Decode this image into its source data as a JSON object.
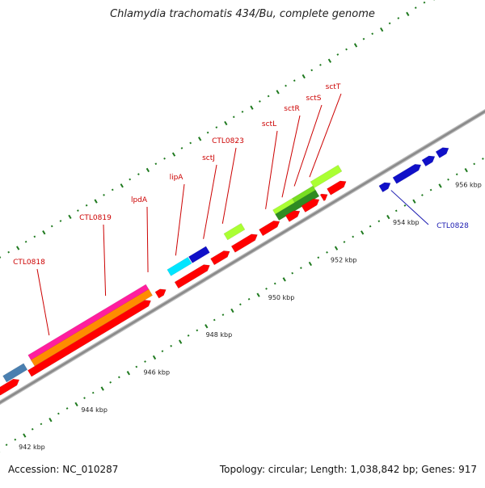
{
  "title": "Chlamydia trachomatis 434/Bu, complete genome",
  "footer": {
    "accession": "Accession: NC_010287",
    "summary": "Topology: circular; Length: 1,038,842 bp; Genes: 917"
  },
  "colors": {
    "backbone": "#8a8a8a",
    "tick": "#1f7a1f",
    "cds": "#ff0000",
    "label_red": "#cc0000",
    "label_blue": "#1a1ab0"
  },
  "ticks": [
    {
      "label": "942 kbp"
    },
    {
      "label": "944 kbp"
    },
    {
      "label": "946 kbp"
    },
    {
      "label": "948 kbp"
    },
    {
      "label": "950 kbp"
    },
    {
      "label": "952 kbp"
    },
    {
      "label": "954 kbp"
    },
    {
      "label": "956 kbp"
    }
  ],
  "gene_labels": [
    {
      "name": "CTL0818",
      "color": "#cc0000"
    },
    {
      "name": "CTL0819",
      "color": "#cc0000"
    },
    {
      "name": "lpdA",
      "color": "#cc0000"
    },
    {
      "name": "lipA",
      "color": "#cc0000"
    },
    {
      "name": "sctJ",
      "color": "#cc0000"
    },
    {
      "name": "CTL0823",
      "color": "#cc0000"
    },
    {
      "name": "sctL",
      "color": "#cc0000"
    },
    {
      "name": "sctR",
      "color": "#cc0000"
    },
    {
      "name": "sctS",
      "color": "#cc0000"
    },
    {
      "name": "sctT",
      "color": "#cc0000"
    },
    {
      "name": "CTL0828",
      "color": "#1a1ab0"
    }
  ],
  "feature_colors": [
    "#4a7fb0",
    "#ff1e9e",
    "#ff8c00",
    "#00e5ff",
    "#1010c8",
    "#aaff33",
    "#77dd22",
    "#2e8b22"
  ]
}
